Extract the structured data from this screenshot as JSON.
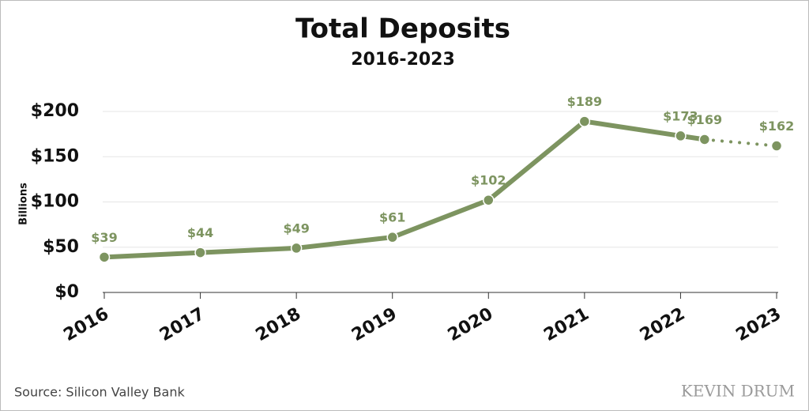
{
  "chart_data": {
    "type": "line",
    "title": "Total Deposits",
    "subtitle": "2016-2023",
    "y_label": "Billions",
    "x": [
      2016,
      2017,
      2018,
      2019,
      2020,
      2021,
      2022,
      2022.25,
      2023
    ],
    "xlim": [
      2016,
      2023
    ],
    "xticks": [
      2016,
      2017,
      2018,
      2019,
      2020,
      2021,
      2022,
      2023
    ],
    "ylim": [
      0,
      200
    ],
    "yticks": [
      {
        "value": 0,
        "label": "$0"
      },
      {
        "value": 50,
        "label": "$50"
      },
      {
        "value": 100,
        "label": "$100"
      },
      {
        "value": 150,
        "label": "$150"
      },
      {
        "value": 200,
        "label": "$200"
      }
    ],
    "grid": true,
    "series": [
      {
        "color": "#7d9460",
        "values": [
          39,
          44,
          49,
          61,
          102,
          189,
          173,
          169,
          162
        ],
        "value_labels": [
          "$39",
          "$44",
          "$49",
          "$61",
          "$102",
          "$189",
          "$173",
          "$169",
          "$162"
        ],
        "segment_styles": [
          "solid",
          "solid",
          "solid",
          "solid",
          "solid",
          "solid",
          "solid",
          "dotted"
        ]
      }
    ],
    "source": "Source: Silicon Valley Bank",
    "branding": "KEVIN DRUM"
  }
}
